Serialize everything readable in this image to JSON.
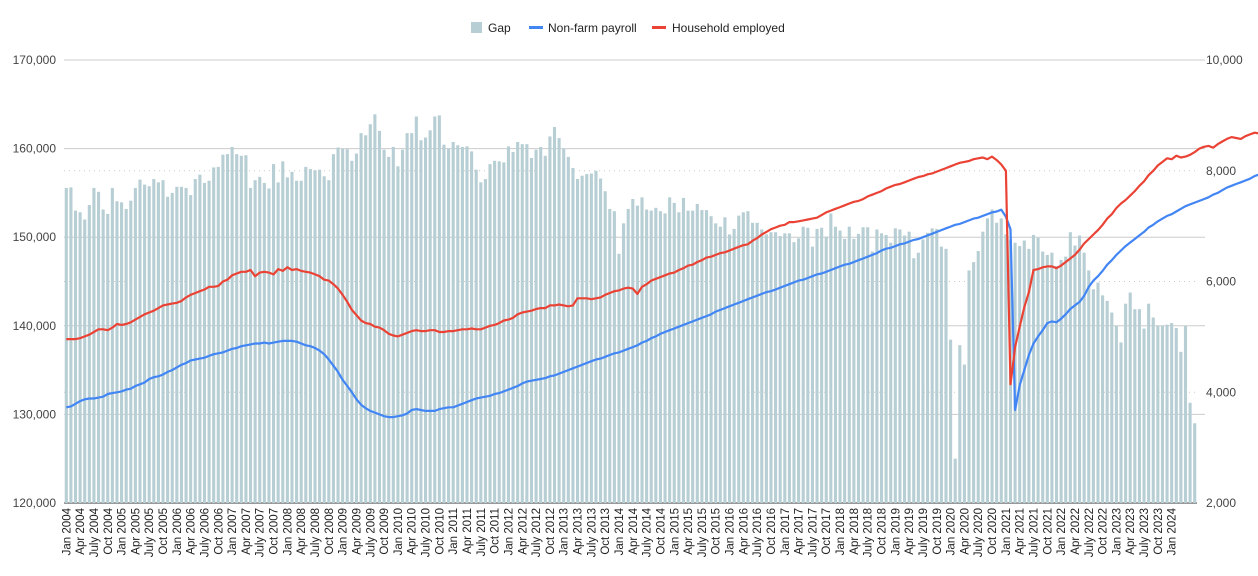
{
  "chart_data": {
    "type": "bar",
    "title": "",
    "xlabel": "",
    "ylabel": "",
    "legend_position": "top",
    "legend": [
      {
        "name": "Gap",
        "kind": "bar",
        "color": "#b7cfd4"
      },
      {
        "name": "Non-farm payroll",
        "kind": "line",
        "color": "#4285f4"
      },
      {
        "name": "Household employed",
        "kind": "line",
        "color": "#ea4335"
      }
    ],
    "x_range": [
      "Jan 2004",
      "Jan 2024"
    ],
    "x_tick_labels": [
      "Jan 2004",
      "Apr 2004",
      "July 2004",
      "Oct 2004",
      "Jan 2005",
      "Apr 2005",
      "July 2005",
      "Oct 2005",
      "Jan 2006",
      "Apr 2006",
      "July 2006",
      "Oct 2006",
      "Jan 2007",
      "Apr 2007",
      "July 2007",
      "Oct 2007",
      "Jan 2008",
      "Apr 2008",
      "July 2008",
      "Oct 2008",
      "Jan 2009",
      "Apr 2009",
      "July 2009",
      "Oct 2009",
      "Jan 2010",
      "Apr 2010",
      "July 2010",
      "Oct 2010",
      "Jan 2011",
      "Apr 2011",
      "July 2011",
      "Oct 2011",
      "Jan 2012",
      "Apr 2012",
      "July 2012",
      "Oct 2012",
      "Jan 2013",
      "Apr 2013",
      "July 2013",
      "Oct 2013",
      "Jan 2014",
      "Apr 2014",
      "July 2014",
      "Oct 2014",
      "Jan 2015",
      "Apr 2015",
      "July 2015",
      "Oct 2015",
      "Jan 2016",
      "Apr 2016",
      "July 2016",
      "Oct 2016",
      "Jan 2017",
      "Apr 2017",
      "July 2017",
      "Oct 2017",
      "Jan 2018",
      "Apr 2018",
      "July 2018",
      "Oct 2018",
      "Jan 2019",
      "Apr 2019",
      "July 2019",
      "Oct 2019",
      "Jan 2020",
      "Apr 2020",
      "July 2020",
      "Oct 2020",
      "Jan 2021",
      "Apr 2021",
      "July 2021",
      "Oct 2021",
      "Jan 2022",
      "Apr 2022",
      "July 2022",
      "Oct 2022",
      "Jan 2023",
      "Apr 2023",
      "July 2023",
      "Oct 2023",
      "Jan 2024"
    ],
    "left_axis": {
      "min": 120000,
      "max": 170000,
      "ticks": [
        120000,
        130000,
        140000,
        150000,
        160000,
        170000
      ],
      "tick_labels": [
        "120,000",
        "130,000",
        "140,000",
        "150,000",
        "160,000",
        "170,000"
      ],
      "series": [
        "Non-farm payroll",
        "Household employed"
      ]
    },
    "right_axis": {
      "min": 2000,
      "max": 10000,
      "ticks": [
        2000,
        4000,
        6000,
        8000,
        10000
      ],
      "tick_labels": [
        "2,000",
        "4,000",
        "6,000",
        "8,000",
        "10,000"
      ],
      "series": [
        "Gap"
      ]
    },
    "grid": true,
    "series": [
      {
        "name": "Gap",
        "type": "bar",
        "axis": "right",
        "values": [
          7690,
          7700,
          7280,
          7250,
          7120,
          7380,
          7690,
          7620,
          7300,
          7220,
          7690,
          7450,
          7430,
          7310,
          7460,
          7690,
          7840,
          7750,
          7720,
          7850,
          7790,
          7830,
          7530,
          7600,
          7710,
          7710,
          7690,
          7560,
          7850,
          7930,
          7780,
          7820,
          8060,
          8070,
          8290,
          8300,
          8430,
          8300,
          8270,
          8280,
          7690,
          7830,
          7890,
          7780,
          7680,
          8120,
          7790,
          8170,
          7880,
          7980,
          7820,
          7820,
          8070,
          8030,
          8010,
          8020,
          7900,
          7830,
          8300,
          8420,
          8400,
          8390,
          8180,
          8310,
          8680,
          8640,
          8840,
          9020,
          8720,
          8380,
          8250,
          8430,
          8080,
          8380,
          8680,
          8680,
          8980,
          8550,
          8600,
          8730,
          8980,
          9000,
          8470,
          8400,
          8520,
          8460,
          8430,
          8440,
          8350,
          8020,
          7790,
          7850,
          8120,
          8180,
          8170,
          8150,
          8440,
          8340,
          8520,
          8480,
          8480,
          8230,
          8380,
          8430,
          8270,
          8620,
          8790,
          8590,
          8400,
          8250,
          8050,
          7850,
          7910,
          7940,
          7950,
          8000,
          7860,
          7630,
          7310,
          7270,
          6500,
          7050,
          7310,
          7490,
          7370,
          7520,
          7300,
          7280,
          7330,
          7270,
          7230,
          7520,
          7420,
          7250,
          7510,
          7280,
          7280,
          7400,
          7290,
          7290,
          7180,
          7050,
          6990,
          7160,
          6850,
          6950,
          7190,
          7250,
          7270,
          7060,
          7060,
          6940,
          6850,
          6890,
          6890,
          6820,
          6870,
          6870,
          6710,
          6780,
          6990,
          6970,
          6630,
          6950,
          6970,
          6810,
          7230,
          6990,
          6920,
          6770,
          6990,
          6770,
          6860,
          6980,
          6980,
          6540,
          6940,
          6870,
          6840,
          6700,
          6960,
          6940,
          6830,
          6900,
          6420,
          6520,
          6760,
          6880,
          6960,
          6950,
          6630,
          6590,
          4950,
          2800,
          4850,
          4500,
          6200,
          6350,
          6550,
          6900,
          7140,
          7300,
          7060,
          7140,
          6850,
          6760,
          6700,
          6640,
          6740,
          6590,
          6840,
          6790,
          6540,
          6480,
          6520,
          6280,
          6390,
          6450,
          6890,
          6650,
          6830,
          6520,
          6200,
          5860,
          5980,
          5750,
          5650,
          5440,
          5200,
          4900,
          5600,
          5800,
          5500,
          5500,
          5150,
          5600,
          5350,
          5200,
          5200,
          5220,
          5250,
          5160,
          4730,
          5200,
          3810,
          3440
        ]
      },
      {
        "name": "Non-farm payroll",
        "type": "line",
        "axis": "left",
        "values": [
          130800,
          130900,
          131200,
          131500,
          131700,
          131800,
          131800,
          131900,
          132000,
          132300,
          132400,
          132500,
          132600,
          132800,
          132900,
          133200,
          133400,
          133600,
          134000,
          134200,
          134300,
          134500,
          134800,
          135000,
          135300,
          135600,
          135800,
          136100,
          136200,
          136300,
          136400,
          136600,
          136800,
          136900,
          137000,
          137200,
          137400,
          137500,
          137700,
          137800,
          137900,
          138000,
          138000,
          138100,
          138000,
          138100,
          138200,
          138300,
          138300,
          138300,
          138200,
          138000,
          137800,
          137700,
          137500,
          137200,
          136800,
          136200,
          135500,
          134800,
          133900,
          133200,
          132500,
          131700,
          131100,
          130700,
          130400,
          130200,
          130000,
          129800,
          129700,
          129700,
          129800,
          129900,
          130100,
          130500,
          130600,
          130500,
          130400,
          130400,
          130400,
          130600,
          130700,
          130800,
          130800,
          131000,
          131200,
          131400,
          131600,
          131800,
          131900,
          132000,
          132100,
          132300,
          132400,
          132600,
          132800,
          133000,
          133200,
          133500,
          133700,
          133800,
          133900,
          134000,
          134100,
          134300,
          134400,
          134600,
          134800,
          135000,
          135200,
          135400,
          135600,
          135800,
          136000,
          136200,
          136300,
          136500,
          136700,
          136900,
          137000,
          137200,
          137400,
          137600,
          137800,
          138100,
          138300,
          138600,
          138800,
          139100,
          139300,
          139500,
          139700,
          139900,
          140100,
          140300,
          140500,
          140700,
          140900,
          141100,
          141300,
          141600,
          141800,
          142000,
          142200,
          142400,
          142600,
          142800,
          143000,
          143200,
          143400,
          143600,
          143800,
          143900,
          144100,
          144300,
          144500,
          144700,
          144900,
          145100,
          145200,
          145400,
          145600,
          145800,
          145900,
          146100,
          146300,
          146500,
          146700,
          146900,
          147000,
          147200,
          147400,
          147600,
          147800,
          148000,
          148200,
          148500,
          148700,
          148800,
          149000,
          149200,
          149300,
          149500,
          149700,
          149800,
          150000,
          150200,
          150400,
          150600,
          150800,
          151000,
          151200,
          151400,
          151500,
          151700,
          151900,
          152100,
          152200,
          152400,
          152600,
          152800,
          152900,
          153100,
          152300,
          150900,
          130500,
          133300,
          135000,
          136700,
          138000,
          138800,
          139500,
          140300,
          140500,
          140400,
          140800,
          141300,
          141900,
          142300,
          142700,
          143400,
          144400,
          145100,
          145600,
          146200,
          146900,
          147400,
          148000,
          148500,
          149000,
          149400,
          149800,
          150200,
          150600,
          151100,
          151400,
          151800,
          152100,
          152400,
          152600,
          152900,
          153200,
          153500,
          153700,
          153900,
          154100,
          154300,
          154500,
          154800,
          155000,
          155300,
          155600,
          155800,
          156000,
          156200,
          156400,
          156600,
          156900,
          157100,
          157300,
          157500,
          157800,
          158100,
          158400,
          158600,
          158900,
          159200,
          159500,
          159800,
          160100,
          160400,
          160700,
          161000,
          161300,
          161600
        ]
      },
      {
        "name": "Household employed",
        "type": "line",
        "axis": "left",
        "values": [
          138500,
          138500,
          138500,
          138600,
          138800,
          139000,
          139300,
          139600,
          139600,
          139500,
          139800,
          140200,
          140100,
          140200,
          140400,
          140700,
          141000,
          141300,
          141500,
          141700,
          142000,
          142300,
          142400,
          142500,
          142600,
          142800,
          143200,
          143500,
          143700,
          143900,
          144100,
          144400,
          144400,
          144500,
          145000,
          145200,
          145700,
          145900,
          146100,
          146100,
          146300,
          145600,
          146000,
          146100,
          146000,
          145800,
          146400,
          146200,
          146600,
          146300,
          146400,
          146200,
          146100,
          146000,
          145800,
          145600,
          145200,
          145100,
          144700,
          144200,
          143500,
          142700,
          141800,
          141200,
          140600,
          140300,
          140200,
          139900,
          139800,
          139500,
          139100,
          138900,
          138800,
          139000,
          139200,
          139400,
          139500,
          139400,
          139400,
          139500,
          139500,
          139300,
          139300,
          139400,
          139400,
          139500,
          139600,
          139600,
          139700,
          139600,
          139600,
          139800,
          140000,
          140100,
          140300,
          140600,
          140700,
          140900,
          141300,
          141500,
          141600,
          141700,
          141900,
          142000,
          142000,
          142300,
          142300,
          142400,
          142300,
          142200,
          142300,
          143100,
          143100,
          143100,
          143000,
          143100,
          143200,
          143500,
          143700,
          143900,
          144000,
          144200,
          144300,
          144200,
          143600,
          144400,
          144700,
          145100,
          145300,
          145500,
          145700,
          145900,
          146000,
          146300,
          146500,
          146800,
          146900,
          147200,
          147400,
          147700,
          147800,
          148000,
          148200,
          148300,
          148500,
          148700,
          148900,
          149100,
          149200,
          149600,
          149900,
          150300,
          150600,
          150900,
          151100,
          151300,
          151400,
          151700,
          151700,
          151800,
          151900,
          152000,
          152100,
          152200,
          152500,
          152800,
          153000,
          153200,
          153400,
          153600,
          153800,
          154000,
          154100,
          154300,
          154600,
          154800,
          155000,
          155200,
          155500,
          155700,
          155900,
          156000,
          156200,
          156400,
          156600,
          156800,
          156900,
          157100,
          157200,
          157400,
          157600,
          157800,
          158000,
          158200,
          158400,
          158500,
          158600,
          158800,
          158900,
          159000,
          158800,
          159100,
          158700,
          158200,
          157500,
          133400,
          137600,
          139900,
          142100,
          143800,
          146300,
          146400,
          146600,
          146700,
          146700,
          146500,
          146800,
          147200,
          147600,
          148000,
          148600,
          149300,
          149800,
          150300,
          150800,
          151400,
          152100,
          152600,
          153300,
          153800,
          154200,
          154700,
          155200,
          155800,
          156300,
          157000,
          157500,
          158100,
          158500,
          158900,
          158800,
          159200,
          159000,
          159100,
          159300,
          159600,
          160000,
          160200,
          160300,
          160100,
          160500,
          160800,
          161100,
          161300,
          161200,
          161100,
          161400,
          161600,
          161800,
          161700,
          162000,
          161900,
          162300,
          162200
        ]
      }
    ]
  }
}
